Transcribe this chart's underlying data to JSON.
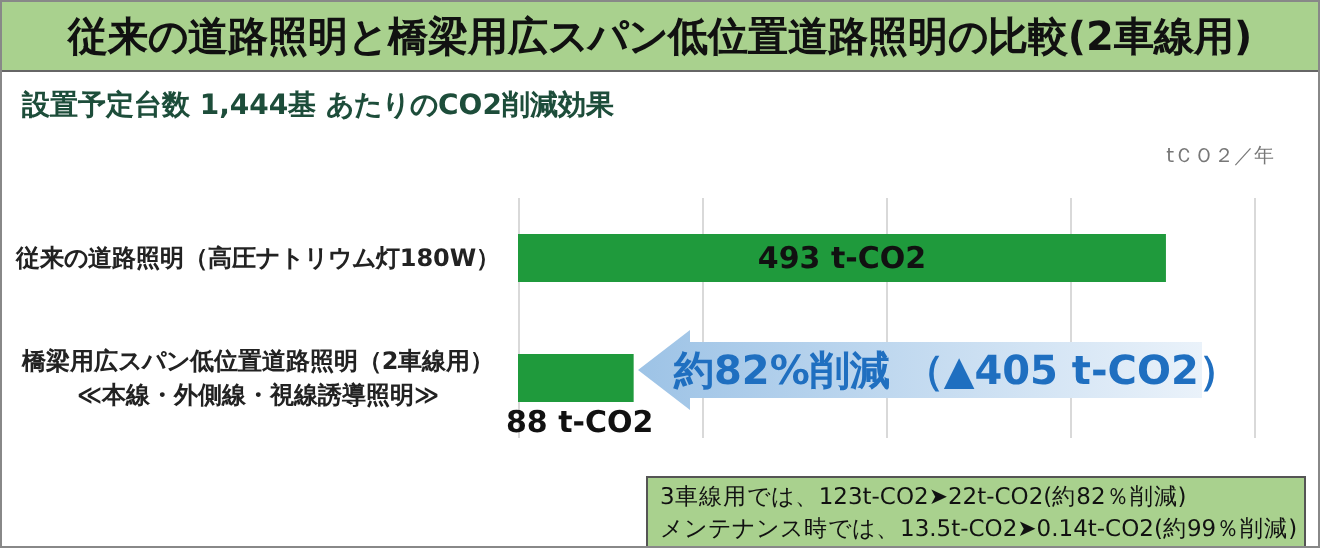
{
  "chart_data": {
    "type": "bar",
    "orientation": "horizontal",
    "title": "従来の道路照明と橋梁用広スパン低位置道路照明の比較(2車線用)",
    "subtitle": "設置予定台数 1,444基 あたりのCO2削減効果",
    "xlabel": "tＣＯ２／年",
    "categories": [
      "従来の道路照明（高圧ナトリウム灯180W）",
      "橋梁用広スパン低位置道路照明（2車線用）\n≪本線・外側線・視線誘導照明≫"
    ],
    "values": [
      493,
      88
    ],
    "color": "#1f9a3c",
    "value_labels": [
      "493 t-CO2",
      "88 t-CO2"
    ],
    "xlim": [
      0,
      560
    ],
    "xticks": [
      {
        "value": 0,
        "label": null
      },
      {
        "value": 140,
        "label": null
      },
      {
        "value": 280,
        "label": null
      },
      {
        "value": 420,
        "label": null
      },
      {
        "value": 560,
        "label": null
      }
    ],
    "tick_labels": "y",
    "grid": "x",
    "annotations": [
      "約82%削減 （▲405 t-CO2）",
      "3車線用では、123t-CO2➤22t-CO2(約82％削減)",
      "メンテナンス時では、13.5t-CO2➤0.14t-CO2(約99％削減)"
    ]
  }
}
